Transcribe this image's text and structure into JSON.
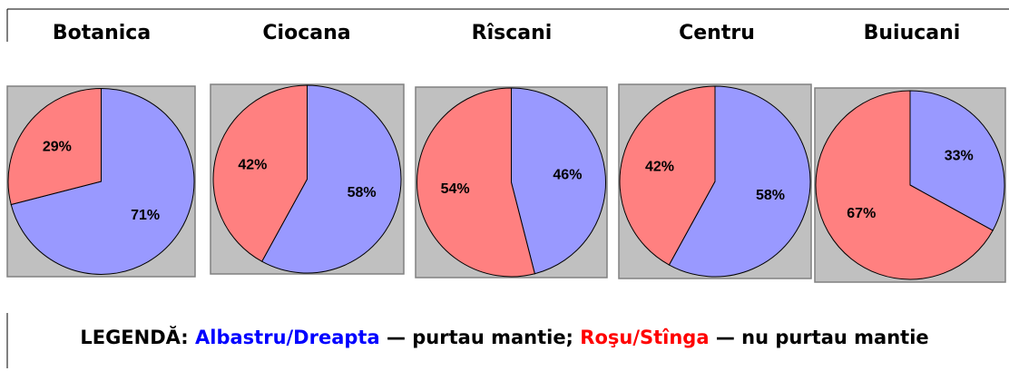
{
  "chart_data": [
    {
      "type": "pie",
      "title": "Botanica",
      "values": [
        71,
        29
      ],
      "value_labels": [
        "71%",
        "29%"
      ],
      "colors": [
        "#9999ff",
        "#ff8080"
      ]
    },
    {
      "type": "pie",
      "title": "Ciocana",
      "values": [
        58,
        42
      ],
      "value_labels": [
        "58%",
        "42%"
      ],
      "colors": [
        "#9999ff",
        "#ff8080"
      ]
    },
    {
      "type": "pie",
      "title": "Rîscani",
      "values": [
        46,
        54
      ],
      "value_labels": [
        "46%",
        "54%"
      ],
      "colors": [
        "#9999ff",
        "#ff8080"
      ]
    },
    {
      "type": "pie",
      "title": "Centru",
      "values": [
        58,
        42
      ],
      "value_labels": [
        "58%",
        "42%"
      ],
      "colors": [
        "#9999ff",
        "#ff8080"
      ]
    },
    {
      "type": "pie",
      "title": "Buiucani",
      "values": [
        33,
        67
      ],
      "value_labels": [
        "33%",
        "67%"
      ],
      "colors": [
        "#9999ff",
        "#ff8080"
      ]
    }
  ],
  "legend": {
    "label": "LEGENDĂ:",
    "items": [
      {
        "name": "Albastru/Dreapta",
        "color": "#0000ff",
        "text": "— purtau mantie;"
      },
      {
        "name": "Roşu/Stînga",
        "color": "#ff0000",
        "text": "— nu purtau mantie"
      }
    ]
  }
}
